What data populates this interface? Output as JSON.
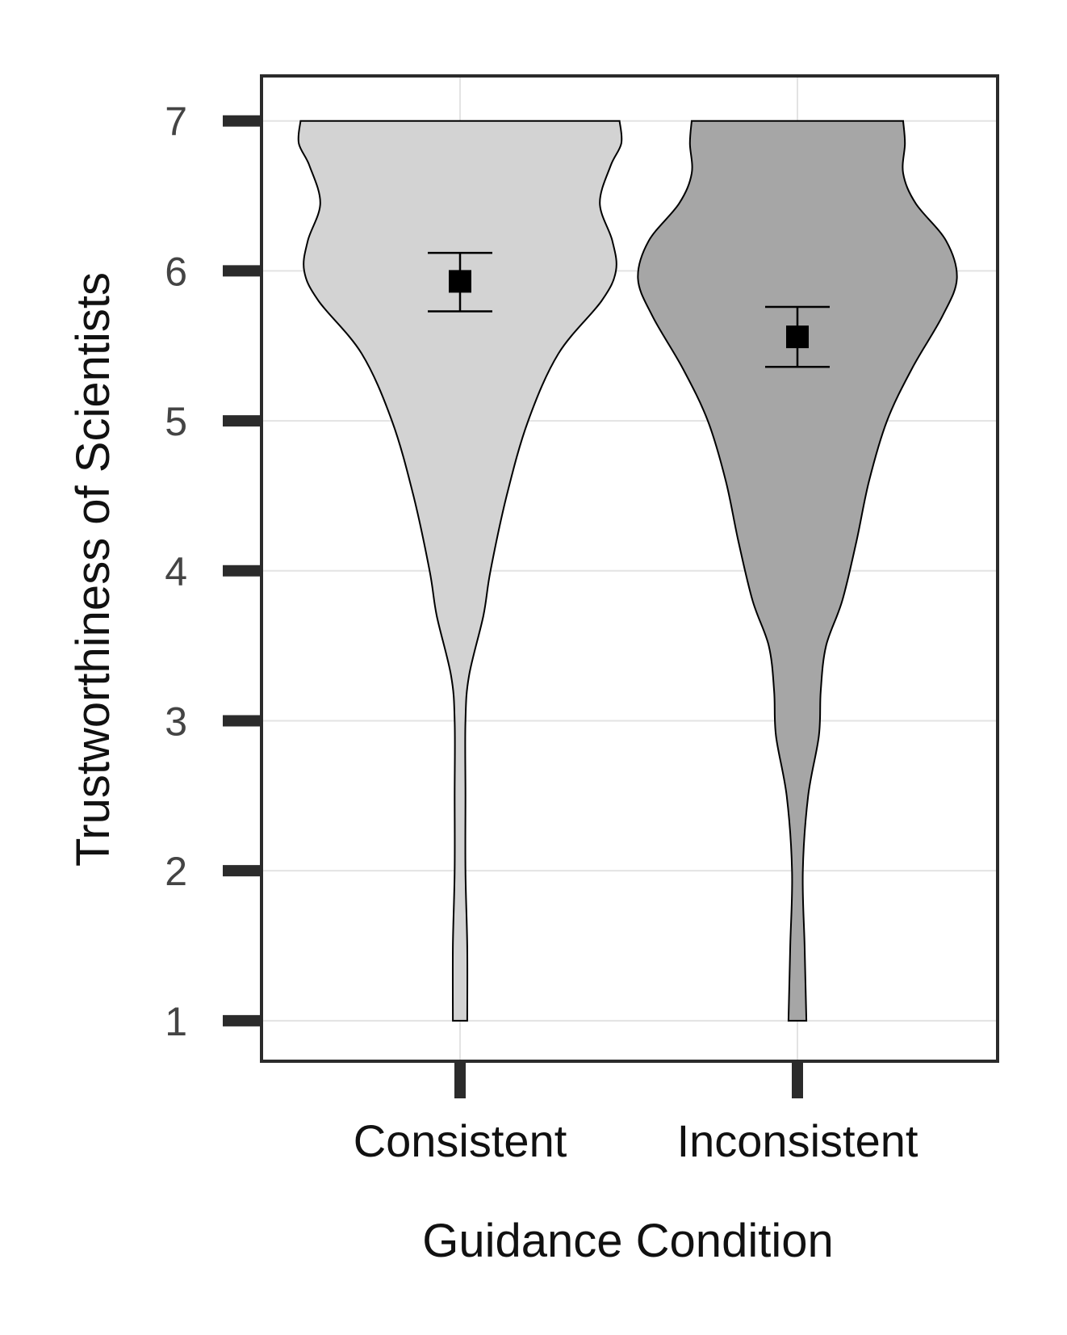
{
  "chart_data": {
    "type": "violin",
    "title": "",
    "xlabel": "Guidance Condition",
    "ylabel": "Trustworthiness of Scientists",
    "ylim": [
      0.73,
      7.3
    ],
    "yticks": [
      1,
      2,
      3,
      4,
      5,
      6,
      7
    ],
    "ytick_labels": [
      "1",
      "2",
      "3",
      "4",
      "5",
      "6",
      "7"
    ],
    "categories": [
      "Consistent",
      "Inconsistent"
    ],
    "grid": true,
    "legend": "none",
    "series": [
      {
        "category": "Consistent",
        "fill": "#d3d3d3",
        "mean": 5.93,
        "error_low": 5.73,
        "error_high": 6.12,
        "density_profile": [
          {
            "y": 1.0,
            "half_width": 0.04
          },
          {
            "y": 1.5,
            "half_width": 0.04
          },
          {
            "y": 2.0,
            "half_width": 0.03
          },
          {
            "y": 2.5,
            "half_width": 0.03
          },
          {
            "y": 3.0,
            "half_width": 0.03
          },
          {
            "y": 3.3,
            "half_width": 0.05
          },
          {
            "y": 3.7,
            "half_width": 0.13
          },
          {
            "y": 4.0,
            "half_width": 0.17
          },
          {
            "y": 4.5,
            "half_width": 0.26
          },
          {
            "y": 5.0,
            "half_width": 0.38
          },
          {
            "y": 5.45,
            "half_width": 0.55
          },
          {
            "y": 5.8,
            "half_width": 0.79
          },
          {
            "y": 6.0,
            "half_width": 0.87
          },
          {
            "y": 6.2,
            "half_width": 0.85
          },
          {
            "y": 6.45,
            "half_width": 0.78
          },
          {
            "y": 6.7,
            "half_width": 0.84
          },
          {
            "y": 6.85,
            "half_width": 0.9
          },
          {
            "y": 7.0,
            "half_width": 0.89
          }
        ]
      },
      {
        "category": "Inconsistent",
        "fill": "#a6a6a6",
        "mean": 5.56,
        "error_low": 5.36,
        "error_high": 5.76,
        "density_profile": [
          {
            "y": 1.0,
            "half_width": 0.05
          },
          {
            "y": 1.5,
            "half_width": 0.04
          },
          {
            "y": 2.0,
            "half_width": 0.03
          },
          {
            "y": 2.5,
            "half_width": 0.06
          },
          {
            "y": 2.9,
            "half_width": 0.12
          },
          {
            "y": 3.2,
            "half_width": 0.13
          },
          {
            "y": 3.5,
            "half_width": 0.16
          },
          {
            "y": 3.8,
            "half_width": 0.25
          },
          {
            "y": 4.2,
            "half_width": 0.33
          },
          {
            "y": 4.6,
            "half_width": 0.4
          },
          {
            "y": 5.0,
            "half_width": 0.5
          },
          {
            "y": 5.35,
            "half_width": 0.64
          },
          {
            "y": 5.7,
            "half_width": 0.81
          },
          {
            "y": 5.95,
            "half_width": 0.89
          },
          {
            "y": 6.2,
            "half_width": 0.83
          },
          {
            "y": 6.45,
            "half_width": 0.66
          },
          {
            "y": 6.65,
            "half_width": 0.59
          },
          {
            "y": 6.85,
            "half_width": 0.6
          },
          {
            "y": 7.0,
            "half_width": 0.59
          }
        ]
      }
    ],
    "colors": {
      "grid": "#e3e3e3",
      "axis": "#2b2b2b",
      "outline": "#000000",
      "marker": "#000000"
    }
  }
}
